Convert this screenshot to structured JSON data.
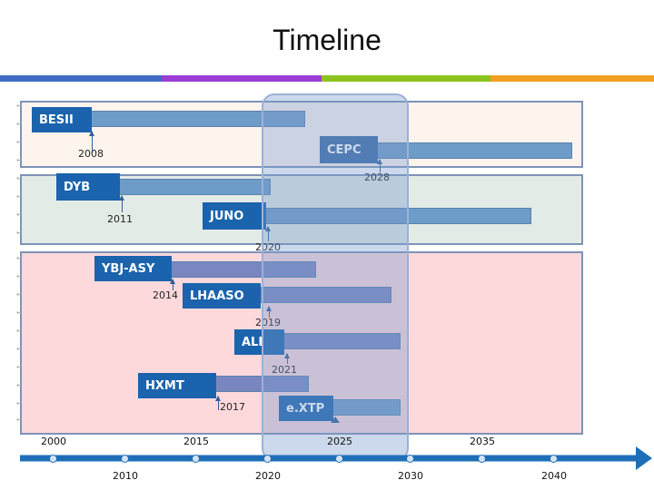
{
  "title": "Timeline",
  "colors": {
    "stripe": [
      "#3d6cc2",
      "#9c3dd6",
      "#8dc21f",
      "#f0a020"
    ],
    "group_bg": [
      "#fdf4ee",
      "#e3ebe6",
      "#fdd9dc"
    ],
    "label_dark": "#1b63ad",
    "label_mid": "#3a6aa5",
    "bar_fill": "#6e9cc9",
    "bar_fill_purple": "#7a86c0",
    "axis": "#1f6fb8"
  },
  "experiments": [
    {
      "name": "BESII",
      "year": "2008"
    },
    {
      "name": "CEPC",
      "year": "2028"
    },
    {
      "name": "DYB",
      "year": "2011"
    },
    {
      "name": "JUNO",
      "year": "2020"
    },
    {
      "name": "YBJ-ASY",
      "year": "2014"
    },
    {
      "name": "LHAASO",
      "year": "2019"
    },
    {
      "name": "ALI",
      "year": "2021"
    },
    {
      "name": "HXMT",
      "year": "2017"
    },
    {
      "name": "e.XTP",
      "year": ""
    }
  ],
  "axis": {
    "top_labels": [
      "2000",
      "2015",
      "2025",
      "2035"
    ],
    "bottom_labels": [
      "2010",
      "2020",
      "2030",
      "2040"
    ]
  }
}
